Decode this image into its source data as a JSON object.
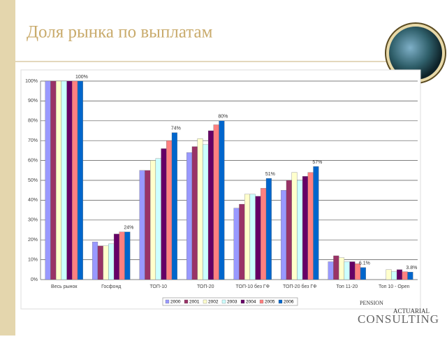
{
  "chart_data": {
    "type": "bar",
    "title": "Доля рынка по выплатам",
    "categories": [
      "Весь рынок",
      "Госфонд",
      "ТОП-10",
      "ТОП-20",
      "ТОП-10 без ГФ",
      "ТОП-20 без ГФ",
      "Топ 11-20",
      "Топ 10 - Open"
    ],
    "series": [
      {
        "name": "2000",
        "color": "#9999ff",
        "values": [
          100,
          19,
          55,
          64,
          36,
          45,
          9,
          null
        ]
      },
      {
        "name": "2001",
        "color": "#993366",
        "values": [
          100,
          17,
          55,
          67,
          38,
          50,
          12,
          null
        ]
      },
      {
        "name": "2002",
        "color": "#ffffcc",
        "values": [
          100,
          17,
          60,
          71,
          43,
          54,
          11,
          5
        ]
      },
      {
        "name": "2003",
        "color": "#ccffff",
        "values": [
          100,
          18,
          61,
          68,
          43,
          50,
          9,
          4
        ]
      },
      {
        "name": "2004",
        "color": "#660066",
        "values": [
          100,
          23,
          66,
          75,
          42,
          52,
          9,
          5
        ]
      },
      {
        "name": "2005",
        "color": "#ff8080",
        "values": [
          100,
          24,
          70,
          78,
          46,
          54,
          8,
          4
        ]
      },
      {
        "name": "2006",
        "color": "#0066cc",
        "values": [
          100,
          24,
          74,
          80,
          51,
          57,
          6.1,
          3.8
        ],
        "value_labels": [
          "100%",
          "24%",
          "74%",
          "80%",
          "51%",
          "57%",
          "6.1%",
          "3.8%"
        ]
      }
    ],
    "ylim": [
      0,
      100
    ],
    "yticks": [
      {
        "value": 0,
        "label": "0%"
      },
      {
        "value": 10,
        "label": "10%"
      },
      {
        "value": 20,
        "label": "20%"
      },
      {
        "value": 30,
        "label": "30%"
      },
      {
        "value": 40,
        "label": "40%"
      },
      {
        "value": 50,
        "label": "50%"
      },
      {
        "value": 60,
        "label": "60%"
      },
      {
        "value": 70,
        "label": "70%"
      },
      {
        "value": 80,
        "label": "80%"
      },
      {
        "value": 90,
        "label": "90%"
      },
      {
        "value": 100,
        "label": "100%"
      }
    ],
    "grid": true,
    "legend": "bottom"
  },
  "logo": {
    "line1": "PENSION",
    "line2": "ACTUARIAL",
    "line3": "CONSULTING"
  }
}
